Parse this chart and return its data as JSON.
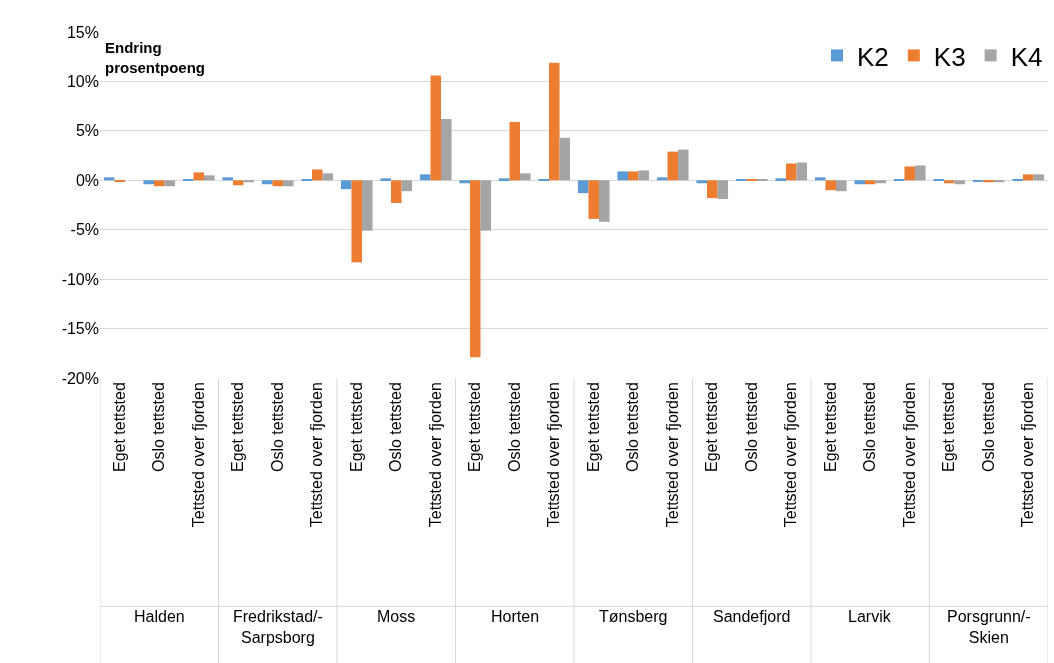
{
  "chart_data": {
    "type": "bar",
    "ylabel": "Endring\nprosentpoeng",
    "categories": [
      "Eget tettsted",
      "Oslo tettsted",
      "Tettsted over fjorden",
      "Eget tettsted",
      "Oslo tettsted",
      "Tettsted over fjorden",
      "Eget tettsted",
      "Oslo tettsted",
      "Tettsted over fjorden",
      "Eget tettsted",
      "Oslo tettsted",
      "Tettsted over fjorden",
      "Eget tettsted",
      "Oslo tettsted",
      "Tettsted over fjorden",
      "Eget tettsted",
      "Oslo tettsted",
      "Tettsted over fjorden",
      "Eget tettsted",
      "Oslo tettsted",
      "Tettsted over fjorden",
      "Eget tettsted",
      "Oslo tettsted",
      "Tettsted over fjorden"
    ],
    "annotations": [
      "Halden",
      "Fredrikstad/-\nSarpsborg",
      "Moss",
      "Horten",
      "Tønsberg",
      "Sandefjord",
      "Larvik",
      "Porsgrunn/-\nSkien"
    ],
    "series": [
      {
        "name": "K2",
        "color": "#5b9bd5",
        "values": [
          0.3,
          -0.4,
          0.1,
          0.3,
          -0.4,
          0.1,
          -0.9,
          0.2,
          0.6,
          -0.3,
          0.2,
          0.1,
          -1.3,
          0.9,
          0.3,
          -0.3,
          0.1,
          0.2,
          0.3,
          -0.4,
          0.1,
          0.1,
          -0.1,
          0.1
        ]
      },
      {
        "name": "K3",
        "color": "#ed7d31",
        "values": [
          -0.1,
          -0.6,
          0.8,
          -0.5,
          -0.6,
          1.1,
          -8.3,
          -2.3,
          10.6,
          -17.9,
          5.9,
          11.9,
          -3.9,
          0.9,
          2.9,
          -1.8,
          0.1,
          1.7,
          -1.0,
          -0.4,
          1.4,
          -0.3,
          -0.2,
          0.6
        ]
      },
      {
        "name": "K4",
        "color": "#a5a5a5",
        "values": [
          0,
          -0.6,
          0.5,
          -0.2,
          -0.6,
          0.7,
          -5.1,
          -1.1,
          6.2,
          -5.1,
          0.7,
          4.3,
          -4.2,
          1.0,
          3.1,
          -1.9,
          0.1,
          1.8,
          -1.1,
          -0.3,
          1.5,
          -0.4,
          -0.2,
          0.6
        ]
      }
    ],
    "ylim": [
      -20,
      15
    ],
    "yticks": [
      {
        "value": -20,
        "label": "-20%"
      },
      {
        "value": -15,
        "label": "-15%"
      },
      {
        "value": -10,
        "label": "-10%"
      },
      {
        "value": -5,
        "label": "-5%"
      },
      {
        "value": 0,
        "label": "0%"
      },
      {
        "value": 5,
        "label": "5%"
      },
      {
        "value": 10,
        "label": "10%"
      },
      {
        "value": 15,
        "label": "15%"
      }
    ],
    "grid": "y",
    "legend": "top right"
  }
}
